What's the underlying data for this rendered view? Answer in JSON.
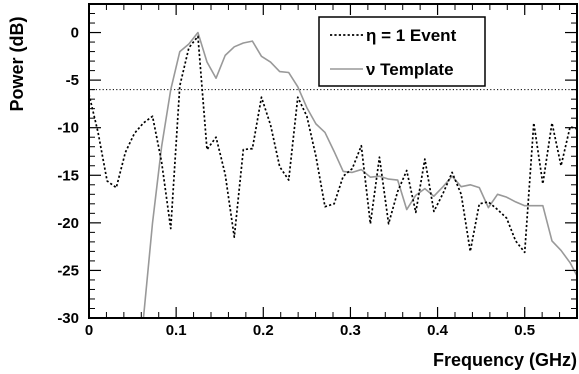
{
  "chart_data": {
    "type": "line",
    "xlabel": "Frequency (GHz)",
    "ylabel": "Power (dB)",
    "xlim": [
      0,
      0.56
    ],
    "ylim": [
      -30,
      3
    ],
    "x_ticks": [
      "0",
      "0.1",
      "0.2",
      "0.3",
      "0.4",
      "0.5"
    ],
    "x_tick_values": [
      0,
      0.1,
      0.2,
      0.3,
      0.4,
      0.5
    ],
    "y_ticks": [
      "0",
      "-5",
      "-10",
      "-15",
      "-20",
      "-25",
      "-30"
    ],
    "y_tick_values": [
      0,
      -5,
      -10,
      -15,
      -20,
      -25,
      -30
    ],
    "threshold_y": -6,
    "grid": false,
    "legend_position": "top-right",
    "series": [
      {
        "name": "η = 1 Event",
        "style": "dotted",
        "color": "#000000",
        "x": [
          0.0,
          0.0104,
          0.0208,
          0.0313,
          0.0417,
          0.0521,
          0.0625,
          0.0729,
          0.0833,
          0.0938,
          0.1042,
          0.1146,
          0.125,
          0.1354,
          0.1458,
          0.1563,
          0.1667,
          0.1771,
          0.1875,
          0.1979,
          0.2083,
          0.2188,
          0.2292,
          0.2396,
          0.25,
          0.2604,
          0.2708,
          0.2813,
          0.2917,
          0.3021,
          0.3125,
          0.3229,
          0.3333,
          0.3438,
          0.3542,
          0.3646,
          0.375,
          0.3854,
          0.3958,
          0.4063,
          0.4167,
          0.4271,
          0.4375,
          0.4479,
          0.4583,
          0.4688,
          0.4792,
          0.4896,
          0.5,
          0.5104,
          0.5208,
          0.5313,
          0.5417,
          0.5521,
          0.5625
        ],
        "y": [
          -6.5,
          -10.5,
          -15.6,
          -16.3,
          -12.6,
          -10.6,
          -9.5,
          -8.8,
          -13.6,
          -20.6,
          -5.6,
          -1.6,
          -0.4,
          -12.3,
          -11.0,
          -14.9,
          -21.5,
          -12.3,
          -12.2,
          -6.8,
          -9.7,
          -14.1,
          -15.5,
          -6.8,
          -8.8,
          -13.0,
          -18.3,
          -18.0,
          -15.1,
          -14.3,
          -11.9,
          -20.1,
          -13.1,
          -20.1,
          -16.7,
          -14.5,
          -18.9,
          -13.3,
          -18.8,
          -16.9,
          -14.7,
          -17.0,
          -23.0,
          -18.0,
          -17.8,
          -18.6,
          -19.5,
          -21.9,
          -23.1,
          -9.5,
          -15.9,
          -9.5,
          -14.0,
          -9.9,
          -10.2
        ]
      },
      {
        "name": "ν Template",
        "style": "solid",
        "color": "#999999",
        "x": [
          0.0625,
          0.0729,
          0.0833,
          0.0938,
          0.1042,
          0.1146,
          0.125,
          0.1354,
          0.1458,
          0.1563,
          0.1667,
          0.1771,
          0.1875,
          0.1979,
          0.2083,
          0.2188,
          0.2292,
          0.2396,
          0.25,
          0.2604,
          0.2708,
          0.2813,
          0.2917,
          0.3021,
          0.3125,
          0.3229,
          0.3333,
          0.3438,
          0.3542,
          0.3646,
          0.375,
          0.3854,
          0.3958,
          0.4063,
          0.4167,
          0.4271,
          0.4375,
          0.4479,
          0.4583,
          0.4688,
          0.4792,
          0.4896,
          0.5,
          0.5104,
          0.5208,
          0.5313,
          0.5417,
          0.5521,
          0.5625
        ],
        "y": [
          -30,
          -20.0,
          -12.0,
          -6.0,
          -2.0,
          -1.2,
          0.0,
          -3.1,
          -4.8,
          -2.4,
          -1.5,
          -1.1,
          -0.9,
          -2.5,
          -3.1,
          -4.1,
          -4.2,
          -5.7,
          -7.9,
          -9.6,
          -10.5,
          -12.5,
          -14.6,
          -14.7,
          -14.4,
          -15.2,
          -15.1,
          -15.4,
          -15.5,
          -18.6,
          -17.1,
          -16.4,
          -17.2,
          -16.2,
          -15.1,
          -16.2,
          -16.0,
          -16.3,
          -18.4,
          -17.0,
          -17.3,
          -17.8,
          -18.2,
          -18.2,
          -18.2,
          -21.9,
          -22.9,
          -24.2,
          -26.0
        ]
      }
    ]
  }
}
